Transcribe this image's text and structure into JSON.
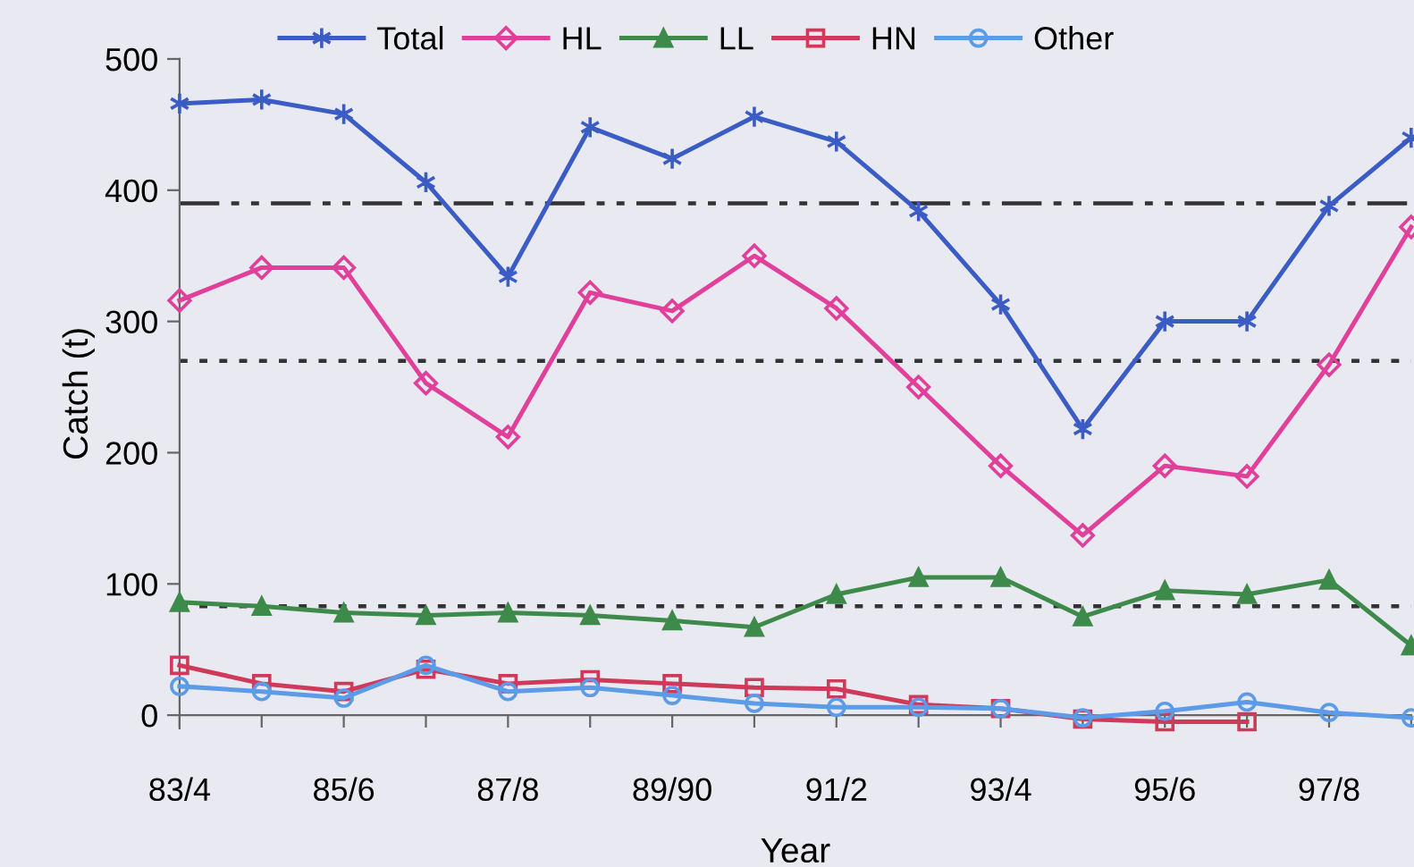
{
  "chart_data": {
    "type": "line",
    "xlabel": "Year",
    "ylabel": "Catch (t)",
    "categories": [
      "83/4",
      null,
      "85/6",
      null,
      "87/8",
      null,
      "89/90",
      null,
      "91/2",
      null,
      "93/4",
      null,
      "95/6",
      null,
      "97/8",
      null
    ],
    "series": [
      {
        "name": "Total",
        "color": "#3a5cc4",
        "marker": "cross",
        "values": [
          466,
          469,
          458,
          406,
          334,
          448,
          424,
          456,
          437,
          384,
          313,
          218,
          300,
          300,
          388,
          440
        ]
      },
      {
        "name": "HL",
        "color": "#e0409a",
        "marker": "diamond",
        "values": [
          316,
          341,
          341,
          253,
          212,
          322,
          308,
          350,
          310,
          250,
          190,
          137,
          190,
          182,
          267,
          372
        ]
      },
      {
        "name": "LL",
        "color": "#3d8a4a",
        "marker": "triangle",
        "values": [
          86,
          83,
          78,
          76,
          78,
          76,
          72,
          67,
          92,
          105,
          105,
          75,
          95,
          92,
          103,
          53
        ]
      },
      {
        "name": "HN",
        "color": "#d03a5a",
        "marker": "square",
        "values": [
          38,
          24,
          18,
          35,
          24,
          27,
          24,
          21,
          20,
          8,
          5,
          -3,
          -5,
          -5,
          null,
          null
        ]
      },
      {
        "name": "Other",
        "color": "#5b9be8",
        "marker": "circle",
        "values": [
          22,
          18,
          13,
          38,
          18,
          21,
          15,
          9,
          6,
          6,
          5,
          -2,
          3,
          10,
          2,
          -2
        ]
      }
    ],
    "ylim": [
      -10,
      500
    ],
    "yticks": [
      0,
      100,
      200,
      300,
      400,
      500
    ],
    "ref_lines": [
      {
        "axis": "y",
        "value": 390,
        "color": "#333333",
        "line_style": "dashdot"
      },
      {
        "axis": "y",
        "value": 270,
        "color": "#333333",
        "line_style": "dotted"
      },
      {
        "axis": "y",
        "value": 83,
        "color": "#333333",
        "line_style": "dotted"
      }
    ],
    "grid": false,
    "legend": "top"
  }
}
